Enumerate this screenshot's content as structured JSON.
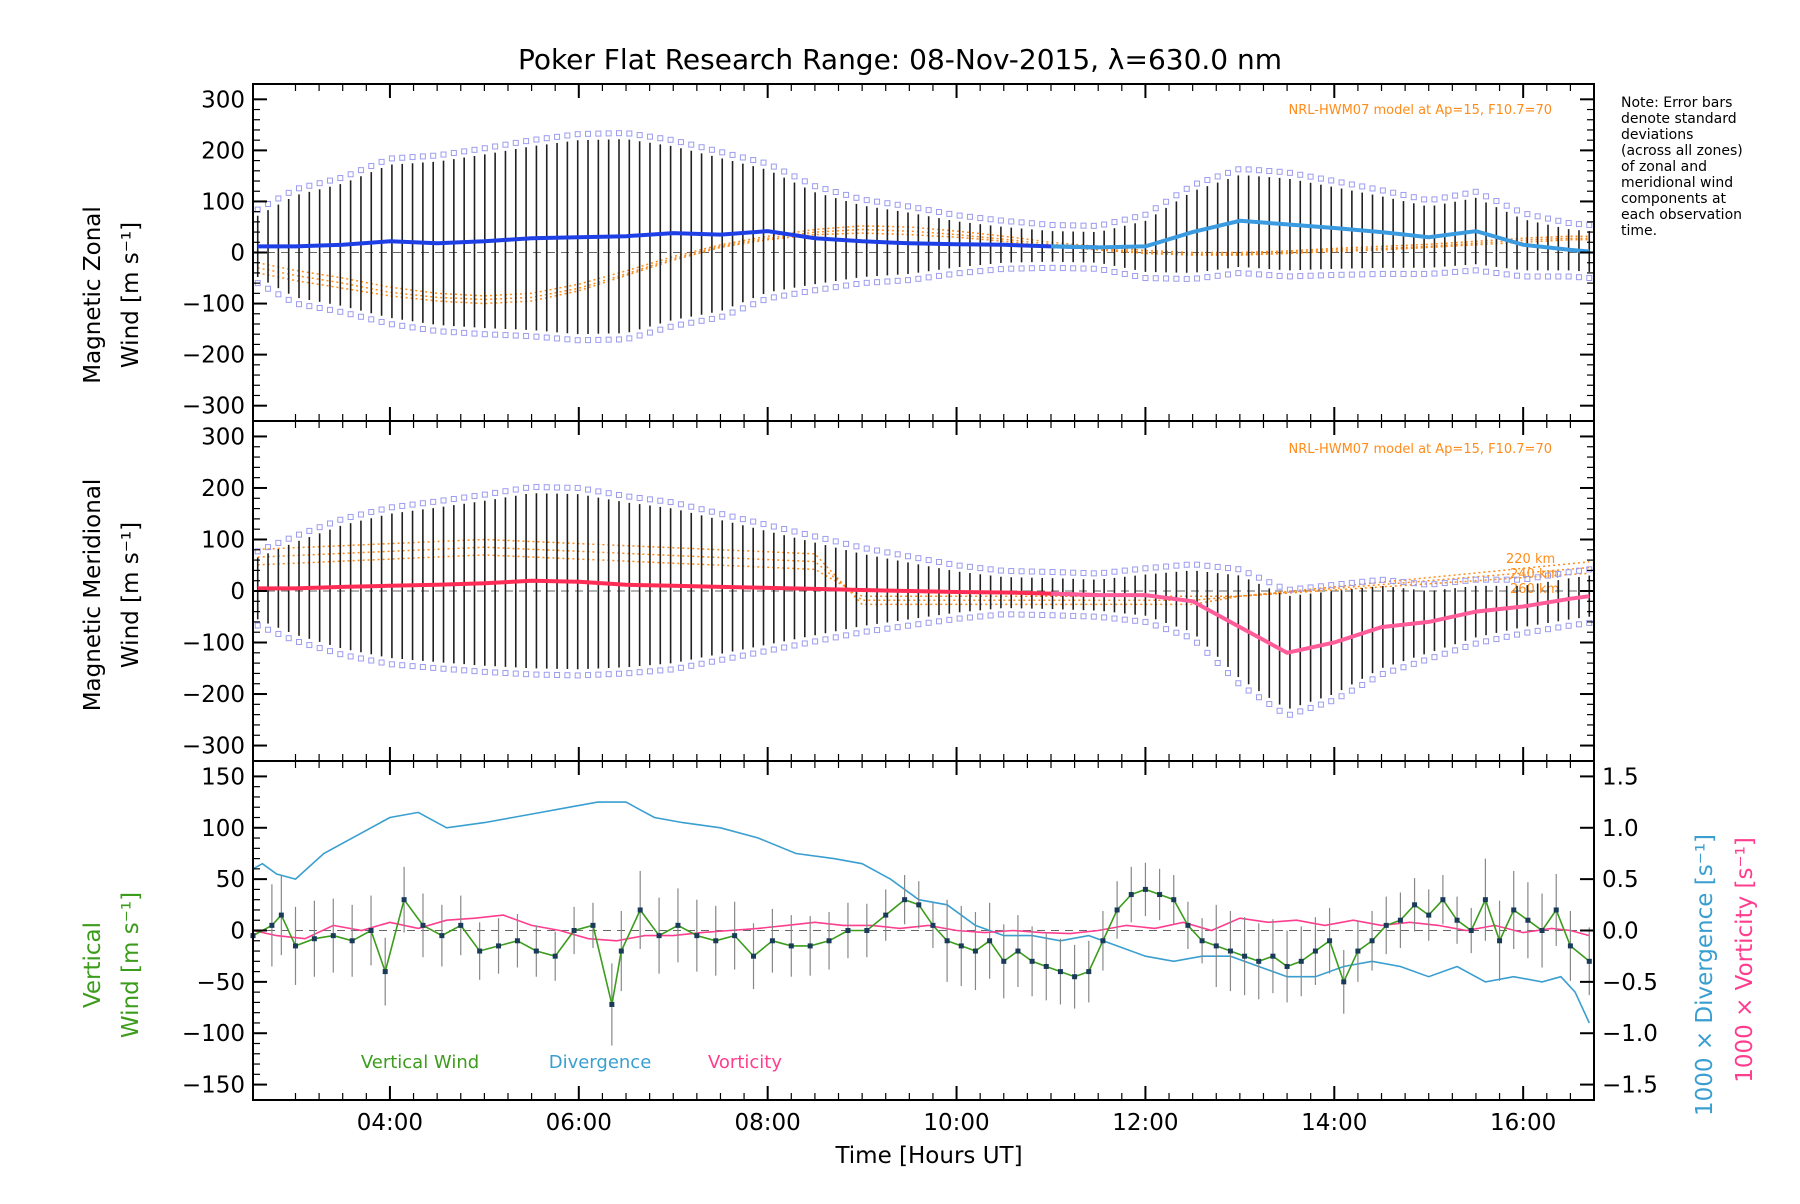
{
  "title": "Poker Flat Research Range: 08-Nov-2015, λ=630.0 nm",
  "note_lines": [
    "Note: Error bars",
    "denote standard",
    "deviations",
    "(across all zones)",
    "of zonal and",
    "meridional wind",
    "components at",
    "each observation",
    "time."
  ],
  "colors": {
    "zonal": "#1f3fe6",
    "zonal_late": "#3a9be0",
    "meridional": "#ff2d55",
    "meridional_late": "#ff5c99",
    "vertical": "#3c9c1c",
    "divergence": "#3a9fd0",
    "vorticity": "#ff3d8f",
    "model": "#ff8c1a",
    "scatter": "#9c9cf0",
    "errorbar": "#202020"
  },
  "xaxis": {
    "label": "Time [Hours UT]",
    "range": [
      2.55,
      16.75
    ],
    "ticks": [
      4,
      6,
      8,
      10,
      12,
      14,
      16
    ],
    "tick_labels": [
      "04:00",
      "06:00",
      "08:00",
      "10:00",
      "12:00",
      "14:00",
      "16:00"
    ]
  },
  "panels": {
    "zonal": {
      "ylabel_line1": "Magnetic Zonal",
      "ylabel_line2": "Wind [m s⁻¹]",
      "ylim": [
        -330,
        330
      ],
      "ticks": [
        300,
        200,
        100,
        0,
        -100,
        -200,
        -300
      ],
      "tick_labels": [
        "300",
        "200",
        "100",
        "0",
        "−100",
        "−200",
        "−300"
      ],
      "model_label": "NRL-HWM07 model at Ap=15, F10.7=70"
    },
    "meridional": {
      "ylabel_line1": "Magnetic Meridional",
      "ylabel_line2": "Wind [m s⁻¹]",
      "ylim": [
        -330,
        330
      ],
      "ticks": [
        300,
        200,
        100,
        0,
        -100,
        -200,
        -300
      ],
      "tick_labels": [
        "300",
        "200",
        "100",
        "0",
        "−100",
        "−200",
        "−300"
      ],
      "model_label": "NRL-HWM07 model at Ap=15, F10.7=70",
      "altitude_labels": [
        "220 km",
        "240 km",
        "260 km"
      ]
    },
    "vertical": {
      "ylabel_line1": "Vertical",
      "ylabel_line2": "Wind [m s⁻¹]",
      "ylim": [
        -165,
        165
      ],
      "ticks": [
        150,
        100,
        50,
        0,
        -50,
        -100,
        -150
      ],
      "tick_labels": [
        "150",
        "100",
        "50",
        "0",
        "−50",
        "−100",
        "−150"
      ],
      "right_ylim": [
        -1.65,
        1.65
      ],
      "right_ticks": [
        1.5,
        1.0,
        0.5,
        0.0,
        -0.5,
        -1.0,
        -1.5
      ],
      "right_tick_labels": [
        "1.5",
        "1.0",
        "0.5",
        "0.0",
        "−0.5",
        "−1.0",
        "−1.5"
      ],
      "right_ylabel_div": "1000 × Divergence [s⁻¹]",
      "right_ylabel_vort": "1000 × Vorticity [s⁻¹]",
      "legend": [
        "Vertical Wind",
        "Divergence",
        "Vorticity"
      ]
    }
  },
  "chart_data": [
    {
      "type": "line",
      "title": "Poker Flat Research Range: 08-Nov-2015, λ=630.0 nm",
      "ylabel": "Magnetic Zonal Wind [m s⁻¹]",
      "xlabel": "",
      "ylim": [
        -330,
        330
      ],
      "x": [
        2.6,
        3.0,
        3.5,
        4.0,
        4.5,
        5.0,
        5.5,
        6.0,
        6.5,
        7.0,
        7.5,
        8.0,
        8.5,
        9.0,
        9.5,
        10.0,
        10.5,
        11.0,
        11.5,
        12.0,
        12.5,
        13.0,
        13.5,
        14.0,
        14.5,
        15.0,
        15.5,
        16.0,
        16.5,
        16.7
      ],
      "series": [
        {
          "name": "",
          "values": [
            12,
            12,
            15,
            22,
            18,
            22,
            28,
            30,
            32,
            38,
            35,
            42,
            28,
            22,
            18,
            16,
            15,
            12,
            10,
            12,
            40,
            62,
            55,
            48,
            40,
            30,
            42,
            15,
            5,
            2
          ]
        }
      ],
      "error_halfwidth": [
        60,
        100,
        120,
        150,
        160,
        170,
        180,
        190,
        190,
        170,
        150,
        120,
        90,
        70,
        60,
        45,
        35,
        30,
        30,
        50,
        80,
        90,
        90,
        80,
        70,
        60,
        65,
        50,
        40,
        40
      ],
      "model_curves": [
        {
          "values": [
            -40,
            -55,
            -70,
            -85,
            -95,
            -100,
            -95,
            -75,
            -45,
            -15,
            10,
            25,
            35,
            38,
            35,
            30,
            22,
            12,
            5,
            -2,
            -5,
            -5,
            -2,
            2,
            5,
            10,
            15,
            20,
            25,
            25
          ]
        },
        {
          "values": [
            -30,
            -45,
            -60,
            -78,
            -88,
            -92,
            -88,
            -70,
            -42,
            -12,
            12,
            28,
            40,
            45,
            42,
            35,
            26,
            16,
            8,
            0,
            -3,
            -3,
            0,
            5,
            8,
            12,
            18,
            24,
            28,
            28
          ]
        },
        {
          "values": [
            -20,
            -35,
            -50,
            -68,
            -80,
            -85,
            -80,
            -62,
            -36,
            -8,
            15,
            32,
            45,
            52,
            50,
            42,
            32,
            20,
            12,
            4,
            0,
            0,
            3,
            8,
            12,
            16,
            22,
            28,
            32,
            32
          ]
        }
      ],
      "model_label": "NRL-HWM07 model at Ap=15, F10.7=70"
    },
    {
      "type": "line",
      "ylabel": "Magnetic Meridional Wind [m s⁻¹]",
      "xlabel": "",
      "ylim": [
        -330,
        330
      ],
      "x": [
        2.6,
        3.0,
        3.5,
        4.0,
        4.5,
        5.0,
        5.5,
        6.0,
        6.5,
        7.0,
        7.5,
        8.0,
        8.5,
        9.0,
        9.5,
        10.0,
        10.5,
        11.0,
        11.5,
        12.0,
        12.5,
        13.0,
        13.5,
        14.0,
        14.5,
        15.0,
        15.5,
        16.0,
        16.5,
        16.7
      ],
      "series": [
        {
          "name": "",
          "values": [
            5,
            5,
            8,
            10,
            12,
            15,
            20,
            18,
            12,
            10,
            8,
            6,
            4,
            2,
            0,
            -2,
            -3,
            -5,
            -8,
            -8,
            -20,
            -70,
            -120,
            -100,
            -70,
            -60,
            -40,
            -30,
            -15,
            -10
          ]
        }
      ],
      "error_halfwidth": [
        60,
        90,
        120,
        140,
        150,
        160,
        170,
        170,
        160,
        150,
        130,
        110,
        90,
        70,
        55,
        40,
        30,
        30,
        30,
        40,
        60,
        100,
        110,
        100,
        80,
        60,
        50,
        40,
        40,
        40
      ]
    },
    {
      "type": "line",
      "ylabel": "Vertical Wind [m s⁻¹]",
      "xlabel": "Time [Hours UT]",
      "ylim": [
        -165,
        165
      ],
      "x": [
        2.55,
        2.75,
        2.85,
        3.0,
        3.2,
        3.4,
        3.6,
        3.8,
        3.95,
        4.15,
        4.35,
        4.55,
        4.75,
        4.95,
        5.15,
        5.35,
        5.55,
        5.75,
        5.95,
        6.15,
        6.35,
        6.45,
        6.65,
        6.85,
        7.05,
        7.25,
        7.45,
        7.65,
        7.85,
        8.05,
        8.25,
        8.45,
        8.65,
        8.85,
        9.05,
        9.25,
        9.45,
        9.6,
        9.75,
        9.9,
        10.05,
        10.2,
        10.35,
        10.5,
        10.65,
        10.8,
        10.95,
        11.1,
        11.25,
        11.4,
        11.55,
        11.7,
        11.85,
        12.0,
        12.15,
        12.3,
        12.45,
        12.6,
        12.75,
        12.9,
        13.05,
        13.2,
        13.35,
        13.5,
        13.65,
        13.8,
        13.95,
        14.1,
        14.25,
        14.4,
        14.55,
        14.7,
        14.85,
        15.0,
        15.15,
        15.3,
        15.45,
        15.6,
        15.75,
        15.9,
        16.05,
        16.2,
        16.35,
        16.5,
        16.7
      ],
      "series": [
        {
          "name": "Vertical Wind",
          "values": [
            -5,
            5,
            15,
            -15,
            -8,
            -5,
            -10,
            0,
            -40,
            30,
            5,
            -5,
            5,
            -20,
            -15,
            -10,
            -20,
            -25,
            0,
            5,
            -72,
            -20,
            20,
            -5,
            5,
            -5,
            -10,
            -5,
            -25,
            -10,
            -15,
            -15,
            -10,
            0,
            0,
            15,
            30,
            25,
            5,
            -10,
            -15,
            -20,
            -10,
            -30,
            -20,
            -30,
            -35,
            -40,
            -45,
            -40,
            -10,
            20,
            35,
            40,
            35,
            30,
            5,
            -10,
            -15,
            -20,
            -25,
            -30,
            -25,
            -35,
            -30,
            -20,
            -10,
            -50,
            -20,
            -10,
            5,
            10,
            25,
            15,
            30,
            10,
            0,
            30,
            -10,
            20,
            10,
            0,
            20,
            -15,
            -30
          ]
        }
      ],
      "divergence": {
        "name": "Divergence",
        "x": [
          2.55,
          2.65,
          2.8,
          3.0,
          3.3,
          3.7,
          4.0,
          4.3,
          4.6,
          5.0,
          5.3,
          5.6,
          5.9,
          6.2,
          6.5,
          6.8,
          7.1,
          7.5,
          7.9,
          8.3,
          8.7,
          9.0,
          9.3,
          9.6,
          9.9,
          10.2,
          10.5,
          10.8,
          11.1,
          11.4,
          11.7,
          12.0,
          12.3,
          12.6,
          12.9,
          13.2,
          13.5,
          13.8,
          14.1,
          14.4,
          14.7,
          15.0,
          15.3,
          15.6,
          15.9,
          16.2,
          16.4,
          16.55,
          16.7
        ],
        "values": [
          0.6,
          0.65,
          0.55,
          0.5,
          0.75,
          0.95,
          1.1,
          1.15,
          1.0,
          1.05,
          1.1,
          1.15,
          1.2,
          1.25,
          1.25,
          1.1,
          1.05,
          1.0,
          0.9,
          0.75,
          0.7,
          0.65,
          0.5,
          0.3,
          0.25,
          0.05,
          -0.05,
          -0.05,
          -0.1,
          -0.05,
          -0.15,
          -0.25,
          -0.3,
          -0.25,
          -0.25,
          -0.35,
          -0.45,
          -0.45,
          -0.35,
          -0.3,
          -0.35,
          -0.45,
          -0.35,
          -0.5,
          -0.45,
          -0.5,
          -0.45,
          -0.6,
          -0.9
        ]
      },
      "vorticity": {
        "name": "Vorticity",
        "x": [
          2.55,
          2.8,
          3.1,
          3.4,
          3.7,
          4.0,
          4.3,
          4.6,
          4.9,
          5.2,
          5.5,
          5.8,
          6.1,
          6.4,
          6.7,
          7.0,
          7.3,
          7.6,
          7.9,
          8.2,
          8.5,
          8.8,
          9.1,
          9.4,
          9.7,
          10.0,
          10.3,
          10.6,
          10.9,
          11.2,
          11.5,
          11.8,
          12.1,
          12.4,
          12.7,
          13.0,
          13.3,
          13.6,
          13.9,
          14.2,
          14.5,
          14.8,
          15.1,
          15.4,
          15.7,
          16.0,
          16.3,
          16.5,
          16.7
        ],
        "values": [
          0.0,
          -0.05,
          -0.08,
          0.05,
          0.0,
          0.08,
          0.02,
          0.1,
          0.12,
          0.15,
          0.05,
          0.0,
          -0.08,
          -0.1,
          -0.05,
          -0.05,
          -0.02,
          0.0,
          0.02,
          0.05,
          0.08,
          0.05,
          0.05,
          0.02,
          0.05,
          0.0,
          -0.02,
          0.0,
          -0.02,
          -0.03,
          0.0,
          0.05,
          0.02,
          0.08,
          0.0,
          0.12,
          0.08,
          0.1,
          0.05,
          0.1,
          0.05,
          0.08,
          0.05,
          0.0,
          0.05,
          -0.02,
          0.02,
          0.0,
          -0.05
        ]
      },
      "right_ylabel": "1000 × Divergence [s⁻¹] / 1000 × Vorticity [s⁻¹]",
      "right_ylim": [
        -1.65,
        1.65
      ]
    }
  ]
}
